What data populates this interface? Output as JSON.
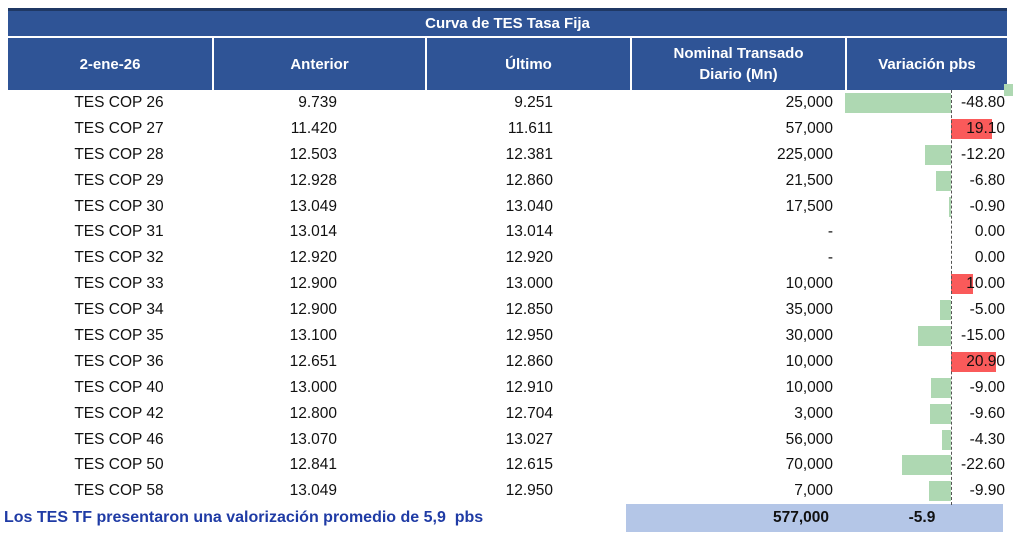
{
  "title": "Curva de TES Tasa Fija",
  "header": {
    "date": "2-ene-26",
    "anterior": "Anterior",
    "ultimo": "Último",
    "nominal_line1": "Nominal Transado",
    "nominal_line2": "Diario (Mn)",
    "variacion": "Variación pbs"
  },
  "summary": {
    "note": "Los TES TF presentaron una valorización promedio de 5,9  pbs",
    "nominal_total": "577,000",
    "variacion_avg": "-5.9"
  },
  "colors": {
    "header_bg": "#2F5496",
    "header_top_border": "#1F3864",
    "bar_negative": "#AED8B2",
    "bar_positive": "#FA5A5A",
    "summary_bg": "#B4C6E7",
    "note_text": "#1F3BA5"
  },
  "chart_data": {
    "type": "table",
    "title": "Curva de TES Tasa Fija",
    "columns": [
      "2-ene-26",
      "Anterior",
      "Último",
      "Nominal Transado Diario (Mn)",
      "Variación pbs"
    ],
    "rows": [
      {
        "bond": "TES COP 26",
        "anterior": "9.739",
        "ultimo": "9.251",
        "nominal": "25,000",
        "variacion_pbs": -48.8,
        "variacion_display": "-48.80"
      },
      {
        "bond": "TES COP 27",
        "anterior": "11.420",
        "ultimo": "11.611",
        "nominal": "57,000",
        "variacion_pbs": 19.1,
        "variacion_display": "19.10"
      },
      {
        "bond": "TES COP 28",
        "anterior": "12.503",
        "ultimo": "12.381",
        "nominal": "225,000",
        "variacion_pbs": -12.2,
        "variacion_display": "-12.20"
      },
      {
        "bond": "TES COP 29",
        "anterior": "12.928",
        "ultimo": "12.860",
        "nominal": "21,500",
        "variacion_pbs": -6.8,
        "variacion_display": "-6.80"
      },
      {
        "bond": "TES COP 30",
        "anterior": "13.049",
        "ultimo": "13.040",
        "nominal": "17,500",
        "variacion_pbs": -0.9,
        "variacion_display": "-0.90"
      },
      {
        "bond": "TES COP 31",
        "anterior": "13.014",
        "ultimo": "13.014",
        "nominal": "-",
        "variacion_pbs": 0.0,
        "variacion_display": "0.00"
      },
      {
        "bond": "TES COP 32",
        "anterior": "12.920",
        "ultimo": "12.920",
        "nominal": "-",
        "variacion_pbs": 0.0,
        "variacion_display": "0.00"
      },
      {
        "bond": "TES COP 33",
        "anterior": "12.900",
        "ultimo": "13.000",
        "nominal": "10,000",
        "variacion_pbs": 10.0,
        "variacion_display": "10.00"
      },
      {
        "bond": "TES COP 34",
        "anterior": "12.900",
        "ultimo": "12.850",
        "nominal": "35,000",
        "variacion_pbs": -5.0,
        "variacion_display": "-5.00"
      },
      {
        "bond": "TES COP 35",
        "anterior": "13.100",
        "ultimo": "12.950",
        "nominal": "30,000",
        "variacion_pbs": -15.0,
        "variacion_display": "-15.00"
      },
      {
        "bond": "TES COP 36",
        "anterior": "12.651",
        "ultimo": "12.860",
        "nominal": "10,000",
        "variacion_pbs": 20.9,
        "variacion_display": "20.90"
      },
      {
        "bond": "TES COP 40",
        "anterior": "13.000",
        "ultimo": "12.910",
        "nominal": "10,000",
        "variacion_pbs": -9.0,
        "variacion_display": "-9.00"
      },
      {
        "bond": "TES COP 42",
        "anterior": "12.800",
        "ultimo": "12.704",
        "nominal": "3,000",
        "variacion_pbs": -9.6,
        "variacion_display": "-9.60"
      },
      {
        "bond": "TES COP 46",
        "anterior": "13.070",
        "ultimo": "13.027",
        "nominal": "56,000",
        "variacion_pbs": -4.3,
        "variacion_display": "-4.30"
      },
      {
        "bond": "TES COP 50",
        "anterior": "12.841",
        "ultimo": "12.615",
        "nominal": "70,000",
        "variacion_pbs": -22.6,
        "variacion_display": "-22.60"
      },
      {
        "bond": "TES COP 58",
        "anterior": "13.049",
        "ultimo": "12.950",
        "nominal": "7,000",
        "variacion_pbs": -9.9,
        "variacion_display": "-9.90"
      }
    ],
    "totals": {
      "nominal_transado": "577,000",
      "variacion_promedio_pbs": -5.9
    },
    "note": "Los TES TF presentaron una valorización promedio de 5,9  pbs",
    "databar": {
      "axis_style": "dashed",
      "negative_direction": "left",
      "positive_direction": "right",
      "scale_max_abs": 48.8
    }
  }
}
